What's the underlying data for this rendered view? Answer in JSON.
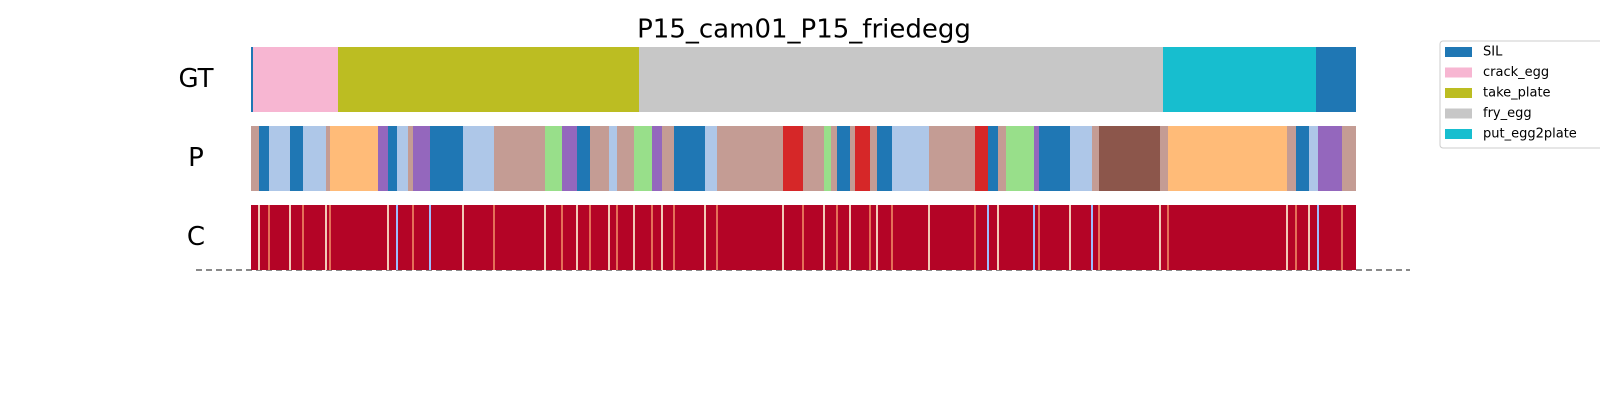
{
  "chart_data": {
    "type": "segmentation",
    "title": "P15_cam01_P15_friedegg",
    "xlim": [
      0,
      1105
    ],
    "legend_loc": "upper right",
    "legend": [
      {
        "name": "SIL",
        "color": "#1f77b4"
      },
      {
        "name": "crack_egg",
        "color": "#f7b6d2"
      },
      {
        "name": "take_plate",
        "color": "#bcbd22"
      },
      {
        "name": "fry_egg",
        "color": "#c7c7c7"
      },
      {
        "name": "put_egg2plate",
        "color": "#17becf"
      }
    ],
    "rows": [
      {
        "label": "GT",
        "segments": [
          {
            "start": 0,
            "end": 2,
            "color": "#1f77b4"
          },
          {
            "start": 2,
            "end": 87,
            "color": "#f7b6d2"
          },
          {
            "start": 87,
            "end": 388,
            "color": "#bcbd22"
          },
          {
            "start": 388,
            "end": 912,
            "color": "#c7c7c7"
          },
          {
            "start": 912,
            "end": 1065,
            "color": "#17becf"
          },
          {
            "start": 1065,
            "end": 1105,
            "color": "#1f77b4"
          }
        ]
      },
      {
        "label": "P",
        "segments": [
          {
            "start": 0,
            "end": 8,
            "color": "#c49c94"
          },
          {
            "start": 8,
            "end": 18,
            "color": "#1f77b4"
          },
          {
            "start": 18,
            "end": 39,
            "color": "#aec7e8"
          },
          {
            "start": 39,
            "end": 52,
            "color": "#1f77b4"
          },
          {
            "start": 52,
            "end": 75,
            "color": "#aec7e8"
          },
          {
            "start": 75,
            "end": 79,
            "color": "#c49c94"
          },
          {
            "start": 79,
            "end": 127,
            "color": "#ffbb78"
          },
          {
            "start": 127,
            "end": 137,
            "color": "#9467bd"
          },
          {
            "start": 137,
            "end": 146,
            "color": "#1f77b4"
          },
          {
            "start": 146,
            "end": 157,
            "color": "#aec7e8"
          },
          {
            "start": 157,
            "end": 162,
            "color": "#c49c94"
          },
          {
            "start": 162,
            "end": 179,
            "color": "#9467bd"
          },
          {
            "start": 179,
            "end": 212,
            "color": "#1f77b4"
          },
          {
            "start": 212,
            "end": 243,
            "color": "#aec7e8"
          },
          {
            "start": 243,
            "end": 294,
            "color": "#c49c94"
          },
          {
            "start": 294,
            "end": 311,
            "color": "#98df8a"
          },
          {
            "start": 311,
            "end": 326,
            "color": "#9467bd"
          },
          {
            "start": 326,
            "end": 339,
            "color": "#1f77b4"
          },
          {
            "start": 339,
            "end": 358,
            "color": "#c49c94"
          },
          {
            "start": 358,
            "end": 366,
            "color": "#aec7e8"
          },
          {
            "start": 366,
            "end": 383,
            "color": "#c49c94"
          },
          {
            "start": 383,
            "end": 401,
            "color": "#98df8a"
          },
          {
            "start": 401,
            "end": 411,
            "color": "#9467bd"
          },
          {
            "start": 411,
            "end": 423,
            "color": "#c49c94"
          },
          {
            "start": 423,
            "end": 454,
            "color": "#1f77b4"
          },
          {
            "start": 454,
            "end": 466,
            "color": "#aec7e8"
          },
          {
            "start": 466,
            "end": 532,
            "color": "#c49c94"
          },
          {
            "start": 532,
            "end": 552,
            "color": "#d62728"
          },
          {
            "start": 552,
            "end": 573,
            "color": "#c49c94"
          },
          {
            "start": 573,
            "end": 580,
            "color": "#98df8a"
          },
          {
            "start": 580,
            "end": 586,
            "color": "#c49c94"
          },
          {
            "start": 586,
            "end": 599,
            "color": "#1f77b4"
          },
          {
            "start": 599,
            "end": 604,
            "color": "#c49c94"
          },
          {
            "start": 604,
            "end": 619,
            "color": "#d62728"
          },
          {
            "start": 619,
            "end": 626,
            "color": "#c49c94"
          },
          {
            "start": 626,
            "end": 641,
            "color": "#1f77b4"
          },
          {
            "start": 641,
            "end": 678,
            "color": "#aec7e8"
          },
          {
            "start": 678,
            "end": 724,
            "color": "#c49c94"
          },
          {
            "start": 724,
            "end": 737,
            "color": "#d62728"
          },
          {
            "start": 737,
            "end": 747,
            "color": "#1f77b4"
          },
          {
            "start": 747,
            "end": 755,
            "color": "#c49c94"
          },
          {
            "start": 755,
            "end": 783,
            "color": "#98df8a"
          },
          {
            "start": 783,
            "end": 788,
            "color": "#9467bd"
          },
          {
            "start": 788,
            "end": 819,
            "color": "#1f77b4"
          },
          {
            "start": 819,
            "end": 841,
            "color": "#aec7e8"
          },
          {
            "start": 841,
            "end": 848,
            "color": "#c49c94"
          },
          {
            "start": 848,
            "end": 909,
            "color": "#8c564b"
          },
          {
            "start": 909,
            "end": 917,
            "color": "#c49c94"
          },
          {
            "start": 917,
            "end": 1036,
            "color": "#ffbb78"
          },
          {
            "start": 1036,
            "end": 1045,
            "color": "#c49c94"
          },
          {
            "start": 1045,
            "end": 1058,
            "color": "#1f77b4"
          },
          {
            "start": 1058,
            "end": 1067,
            "color": "#aec7e8"
          },
          {
            "start": 1067,
            "end": 1091,
            "color": "#9467bd"
          },
          {
            "start": 1091,
            "end": 1105,
            "color": "#c49c94"
          }
        ]
      },
      {
        "label": "C",
        "color": "#b40426",
        "segments": [
          {
            "start": 7,
            "end": 9,
            "color": "#f2cbb7"
          },
          {
            "start": 17,
            "end": 19,
            "color": "#e57058"
          },
          {
            "start": 38,
            "end": 40,
            "color": "#f2cbb7"
          },
          {
            "start": 51,
            "end": 53,
            "color": "#e57058"
          },
          {
            "start": 74,
            "end": 76,
            "color": "#f2cbb7"
          },
          {
            "start": 78,
            "end": 80,
            "color": "#e57058"
          },
          {
            "start": 136,
            "end": 138,
            "color": "#f2cbb7"
          },
          {
            "start": 145,
            "end": 147,
            "color": "#9dbdff"
          },
          {
            "start": 161,
            "end": 163,
            "color": "#e57058"
          },
          {
            "start": 178,
            "end": 180,
            "color": "#9dbdff"
          },
          {
            "start": 211,
            "end": 213,
            "color": "#f2cbb7"
          },
          {
            "start": 242,
            "end": 244,
            "color": "#e57058"
          },
          {
            "start": 293,
            "end": 295,
            "color": "#f2cbb7"
          },
          {
            "start": 310,
            "end": 312,
            "color": "#e57058"
          },
          {
            "start": 325,
            "end": 327,
            "color": "#f2cbb7"
          },
          {
            "start": 338,
            "end": 340,
            "color": "#e57058"
          },
          {
            "start": 357,
            "end": 359,
            "color": "#f2cbb7"
          },
          {
            "start": 365,
            "end": 367,
            "color": "#e57058"
          },
          {
            "start": 382,
            "end": 384,
            "color": "#f2cbb7"
          },
          {
            "start": 400,
            "end": 402,
            "color": "#e57058"
          },
          {
            "start": 410,
            "end": 412,
            "color": "#f2cbb7"
          },
          {
            "start": 422,
            "end": 424,
            "color": "#e57058"
          },
          {
            "start": 453,
            "end": 455,
            "color": "#f2cbb7"
          },
          {
            "start": 465,
            "end": 467,
            "color": "#e57058"
          },
          {
            "start": 531,
            "end": 533,
            "color": "#f2cbb7"
          },
          {
            "start": 551,
            "end": 553,
            "color": "#e57058"
          },
          {
            "start": 572,
            "end": 574,
            "color": "#f2cbb7"
          },
          {
            "start": 585,
            "end": 587,
            "color": "#e57058"
          },
          {
            "start": 598,
            "end": 600,
            "color": "#f2cbb7"
          },
          {
            "start": 618,
            "end": 620,
            "color": "#e57058"
          },
          {
            "start": 625,
            "end": 627,
            "color": "#f2cbb7"
          },
          {
            "start": 640,
            "end": 642,
            "color": "#e57058"
          },
          {
            "start": 677,
            "end": 679,
            "color": "#f2cbb7"
          },
          {
            "start": 723,
            "end": 725,
            "color": "#e57058"
          },
          {
            "start": 736,
            "end": 738,
            "color": "#9dbdff"
          },
          {
            "start": 746,
            "end": 748,
            "color": "#f2cbb7"
          },
          {
            "start": 782,
            "end": 784,
            "color": "#9dbdff"
          },
          {
            "start": 787,
            "end": 789,
            "color": "#e57058"
          },
          {
            "start": 818,
            "end": 820,
            "color": "#f2cbb7"
          },
          {
            "start": 840,
            "end": 842,
            "color": "#9dbdff"
          },
          {
            "start": 847,
            "end": 849,
            "color": "#e57058"
          },
          {
            "start": 908,
            "end": 910,
            "color": "#f2cbb7"
          },
          {
            "start": 916,
            "end": 918,
            "color": "#e57058"
          },
          {
            "start": 1035,
            "end": 1037,
            "color": "#f2cbb7"
          },
          {
            "start": 1044,
            "end": 1046,
            "color": "#e57058"
          },
          {
            "start": 1057,
            "end": 1059,
            "color": "#f2cbb7"
          },
          {
            "start": 1066,
            "end": 1068,
            "color": "#9dbdff"
          },
          {
            "start": 1090,
            "end": 1092,
            "color": "#e57058"
          }
        ]
      }
    ]
  }
}
